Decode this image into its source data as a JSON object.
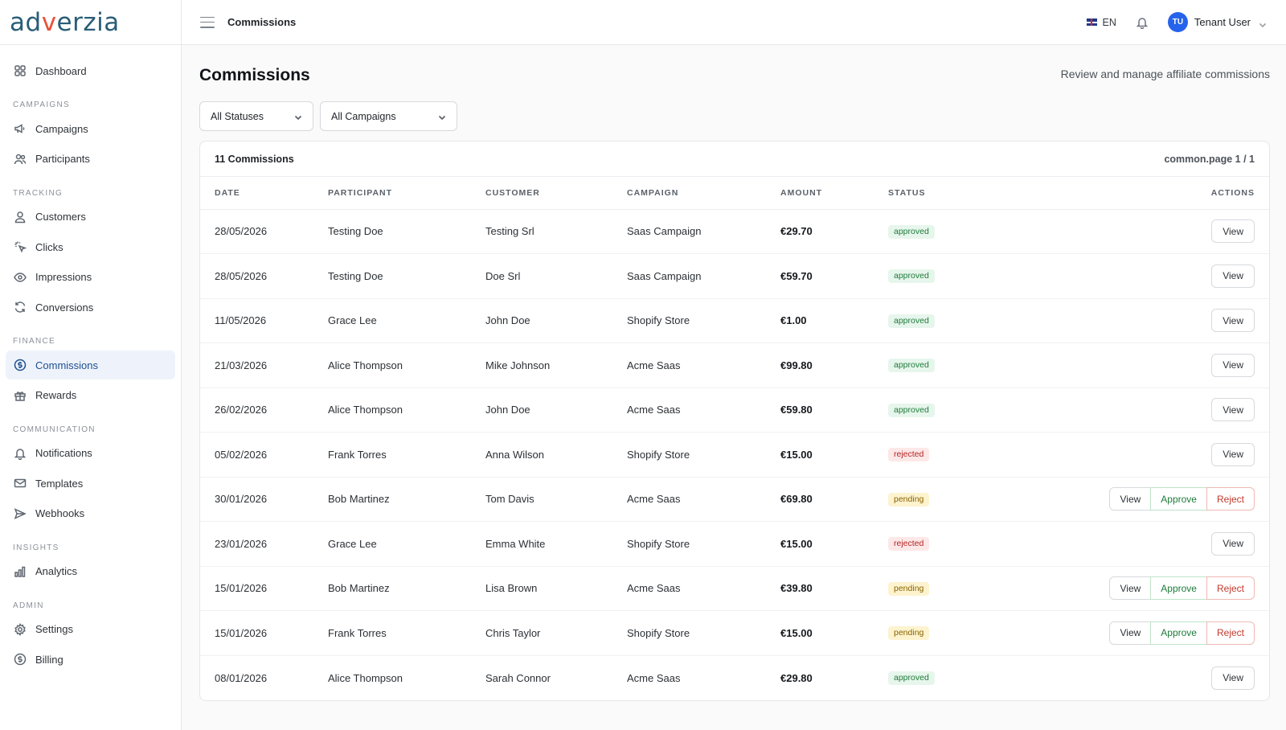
{
  "brand": {
    "logo_a": "ad",
    "logo_b": "v",
    "logo_c": "erzia"
  },
  "sidebar": {
    "dashboard": "Dashboard",
    "sections": {
      "campaigns": "CAMPAIGNS",
      "tracking": "TRACKING",
      "finance": "FINANCE",
      "communication": "COMMUNICATION",
      "insights": "INSIGHTS",
      "admin": "ADMIN"
    },
    "items": {
      "campaigns": "Campaigns",
      "participants": "Participants",
      "customers": "Customers",
      "clicks": "Clicks",
      "impressions": "Impressions",
      "conversions": "Conversions",
      "commissions": "Commissions",
      "rewards": "Rewards",
      "notifications": "Notifications",
      "templates": "Templates",
      "webhooks": "Webhooks",
      "analytics": "Analytics",
      "settings": "Settings",
      "billing": "Billing"
    },
    "active": "commissions"
  },
  "topbar": {
    "breadcrumb": "Commissions",
    "language": "EN",
    "user_initials": "TU",
    "user_name": "Tenant User"
  },
  "page": {
    "title": "Commissions",
    "subtitle": "Review and manage affiliate commissions"
  },
  "filters": {
    "status": "All Statuses",
    "campaign": "All Campaigns"
  },
  "table": {
    "count_label": "11 Commissions",
    "page_label": "common.page 1 / 1",
    "headers": {
      "date": "DATE",
      "participant": "PARTICIPANT",
      "customer": "CUSTOMER",
      "campaign": "CAMPAIGN",
      "amount": "AMOUNT",
      "status": "STATUS",
      "actions": "ACTIONS"
    },
    "buttons": {
      "view": "View",
      "approve": "Approve",
      "reject": "Reject"
    },
    "rows": [
      {
        "date": "28/05/2026",
        "participant": "Testing Doe",
        "customer": "Testing Srl",
        "campaign": "Saas Campaign",
        "amount": "€29.70",
        "status": "approved"
      },
      {
        "date": "28/05/2026",
        "participant": "Testing Doe",
        "customer": "Doe Srl",
        "campaign": "Saas Campaign",
        "amount": "€59.70",
        "status": "approved"
      },
      {
        "date": "11/05/2026",
        "participant": "Grace Lee",
        "customer": "John Doe",
        "campaign": "Shopify Store",
        "amount": "€1.00",
        "status": "approved"
      },
      {
        "date": "21/03/2026",
        "participant": "Alice Thompson",
        "customer": "Mike Johnson",
        "campaign": "Acme Saas",
        "amount": "€99.80",
        "status": "approved"
      },
      {
        "date": "26/02/2026",
        "participant": "Alice Thompson",
        "customer": "John Doe",
        "campaign": "Acme Saas",
        "amount": "€59.80",
        "status": "approved"
      },
      {
        "date": "05/02/2026",
        "participant": "Frank Torres",
        "customer": "Anna Wilson",
        "campaign": "Shopify Store",
        "amount": "€15.00",
        "status": "rejected"
      },
      {
        "date": "30/01/2026",
        "participant": "Bob Martinez",
        "customer": "Tom Davis",
        "campaign": "Acme Saas",
        "amount": "€69.80",
        "status": "pending"
      },
      {
        "date": "23/01/2026",
        "participant": "Grace Lee",
        "customer": "Emma White",
        "campaign": "Shopify Store",
        "amount": "€15.00",
        "status": "rejected"
      },
      {
        "date": "15/01/2026",
        "participant": "Bob Martinez",
        "customer": "Lisa Brown",
        "campaign": "Acme Saas",
        "amount": "€39.80",
        "status": "pending"
      },
      {
        "date": "15/01/2026",
        "participant": "Frank Torres",
        "customer": "Chris Taylor",
        "campaign": "Shopify Store",
        "amount": "€15.00",
        "status": "pending"
      },
      {
        "date": "08/01/2026",
        "participant": "Alice Thompson",
        "customer": "Sarah Connor",
        "campaign": "Acme Saas",
        "amount": "€29.80",
        "status": "approved"
      }
    ]
  }
}
